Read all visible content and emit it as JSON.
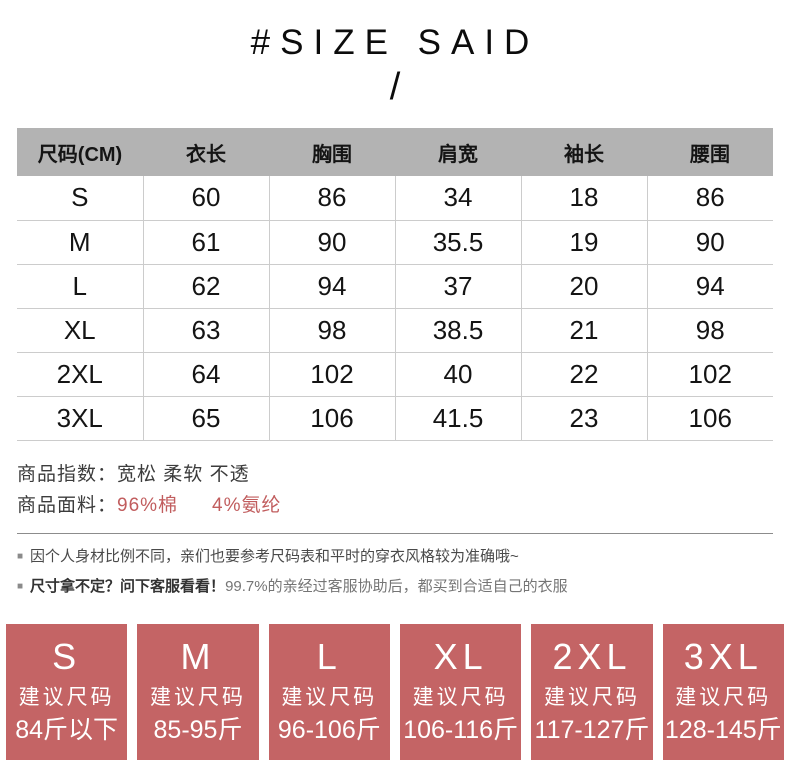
{
  "header": {
    "title": "#SIZE SAID",
    "slash": "/"
  },
  "size_table": {
    "columns": [
      "尺码(CM)",
      "衣长",
      "胸围",
      "肩宽",
      "袖长",
      "腰围"
    ],
    "rows": [
      [
        "S",
        "60",
        "86",
        "34",
        "18",
        "86"
      ],
      [
        "M",
        "61",
        "90",
        "35.5",
        "19",
        "90"
      ],
      [
        "L",
        "62",
        "94",
        "37",
        "20",
        "94"
      ],
      [
        "XL",
        "63",
        "98",
        "38.5",
        "21",
        "98"
      ],
      [
        "2XL",
        "64",
        "102",
        "40",
        "22",
        "102"
      ],
      [
        "3XL",
        "65",
        "106",
        "41.5",
        "23",
        "106"
      ]
    ]
  },
  "product_info": {
    "index_label": "商品指数：",
    "index_value": "宽松 柔软 不透",
    "fabric_label": "商品面料：",
    "fabric_value_1": "96%棉",
    "fabric_value_2": "4%氨纶"
  },
  "notes": [
    {
      "bullet": "■",
      "text": "因个人身材比例不同，亲们也要参考尺码表和平时的穿衣风格较为准确哦~"
    },
    {
      "bullet": "■",
      "bold": "尺寸拿不定？问下客服看看！",
      "text": "99.7%的亲经过客服协助后，都买到合适自己的衣服"
    }
  ],
  "size_boxes": [
    {
      "size": "S",
      "label": "建议尺码",
      "range": "84斤以下"
    },
    {
      "size": "M",
      "label": "建议尺码",
      "range": "85-95斤"
    },
    {
      "size": "L",
      "label": "建议尺码",
      "range": "96-106斤"
    },
    {
      "size": "XL",
      "label": "建议尺码",
      "range": "106-116斤"
    },
    {
      "size": "2XL",
      "label": "建议尺码",
      "range": "117-127斤"
    },
    {
      "size": "3XL",
      "label": "建议尺码",
      "range": "128-145斤"
    }
  ],
  "colors": {
    "box_red": "#c46465",
    "fabric_red": "#c15d5e",
    "header_gray": "#b3b3b3"
  }
}
